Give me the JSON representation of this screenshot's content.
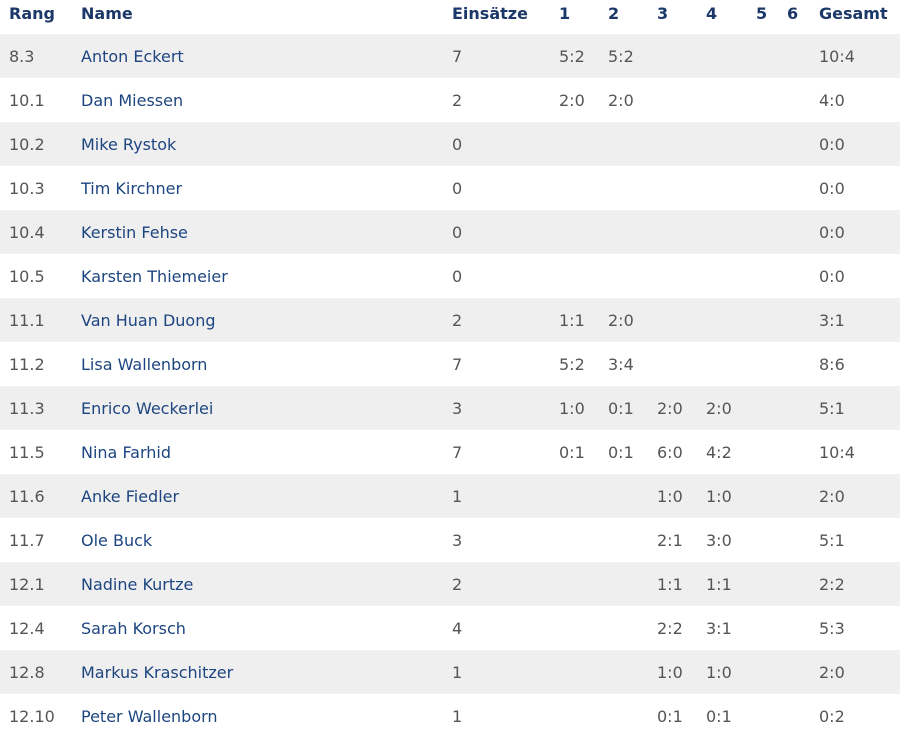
{
  "headers": {
    "rang": "Rang",
    "name": "Name",
    "einsaetze": "Einsätze",
    "g1": "1",
    "g2": "2",
    "g3": "3",
    "g4": "4",
    "g5": "5",
    "g6": "6",
    "gesamt": "Gesamt"
  },
  "rows": [
    {
      "rang": "8.3",
      "name": "Anton Eckert",
      "einsaetze": "7",
      "g": [
        "5:2",
        "5:2",
        "",
        "",
        "",
        ""
      ],
      "gesamt": "10:4"
    },
    {
      "rang": "10.1",
      "name": "Dan Miessen",
      "einsaetze": "2",
      "g": [
        "2:0",
        "2:0",
        "",
        "",
        "",
        ""
      ],
      "gesamt": "4:0"
    },
    {
      "rang": "10.2",
      "name": "Mike Rystok",
      "einsaetze": "0",
      "g": [
        "",
        "",
        "",
        "",
        "",
        ""
      ],
      "gesamt": "0:0"
    },
    {
      "rang": "10.3",
      "name": "Tim Kirchner",
      "einsaetze": "0",
      "g": [
        "",
        "",
        "",
        "",
        "",
        ""
      ],
      "gesamt": "0:0"
    },
    {
      "rang": "10.4",
      "name": "Kerstin Fehse",
      "einsaetze": "0",
      "g": [
        "",
        "",
        "",
        "",
        "",
        ""
      ],
      "gesamt": "0:0"
    },
    {
      "rang": "10.5",
      "name": "Karsten Thiemeier",
      "einsaetze": "0",
      "g": [
        "",
        "",
        "",
        "",
        "",
        ""
      ],
      "gesamt": "0:0"
    },
    {
      "rang": "11.1",
      "name": "Van Huan Duong",
      "einsaetze": "2",
      "g": [
        "1:1",
        "2:0",
        "",
        "",
        "",
        ""
      ],
      "gesamt": "3:1"
    },
    {
      "rang": "11.2",
      "name": "Lisa Wallenborn",
      "einsaetze": "7",
      "g": [
        "5:2",
        "3:4",
        "",
        "",
        "",
        ""
      ],
      "gesamt": "8:6"
    },
    {
      "rang": "11.3",
      "name": "Enrico Weckerlei",
      "einsaetze": "3",
      "g": [
        "1:0",
        "0:1",
        "2:0",
        "2:0",
        "",
        ""
      ],
      "gesamt": "5:1"
    },
    {
      "rang": "11.5",
      "name": "Nina Farhid",
      "einsaetze": "7",
      "g": [
        "0:1",
        "0:1",
        "6:0",
        "4:2",
        "",
        ""
      ],
      "gesamt": "10:4"
    },
    {
      "rang": "11.6",
      "name": "Anke Fiedler",
      "einsaetze": "1",
      "g": [
        "",
        "",
        "1:0",
        "1:0",
        "",
        ""
      ],
      "gesamt": "2:0"
    },
    {
      "rang": "11.7",
      "name": "Ole Buck",
      "einsaetze": "3",
      "g": [
        "",
        "",
        "2:1",
        "3:0",
        "",
        ""
      ],
      "gesamt": "5:1"
    },
    {
      "rang": "12.1",
      "name": "Nadine Kurtze",
      "einsaetze": "2",
      "g": [
        "",
        "",
        "1:1",
        "1:1",
        "",
        ""
      ],
      "gesamt": "2:2"
    },
    {
      "rang": "12.4",
      "name": "Sarah Korsch",
      "einsaetze": "4",
      "g": [
        "",
        "",
        "2:2",
        "3:1",
        "",
        ""
      ],
      "gesamt": "5:3"
    },
    {
      "rang": "12.8",
      "name": "Markus Kraschitzer",
      "einsaetze": "1",
      "g": [
        "",
        "",
        "1:0",
        "1:0",
        "",
        ""
      ],
      "gesamt": "2:0"
    },
    {
      "rang": "12.10",
      "name": "Peter Wallenborn",
      "einsaetze": "1",
      "g": [
        "",
        "",
        "0:1",
        "0:1",
        "",
        ""
      ],
      "gesamt": "0:2"
    }
  ]
}
